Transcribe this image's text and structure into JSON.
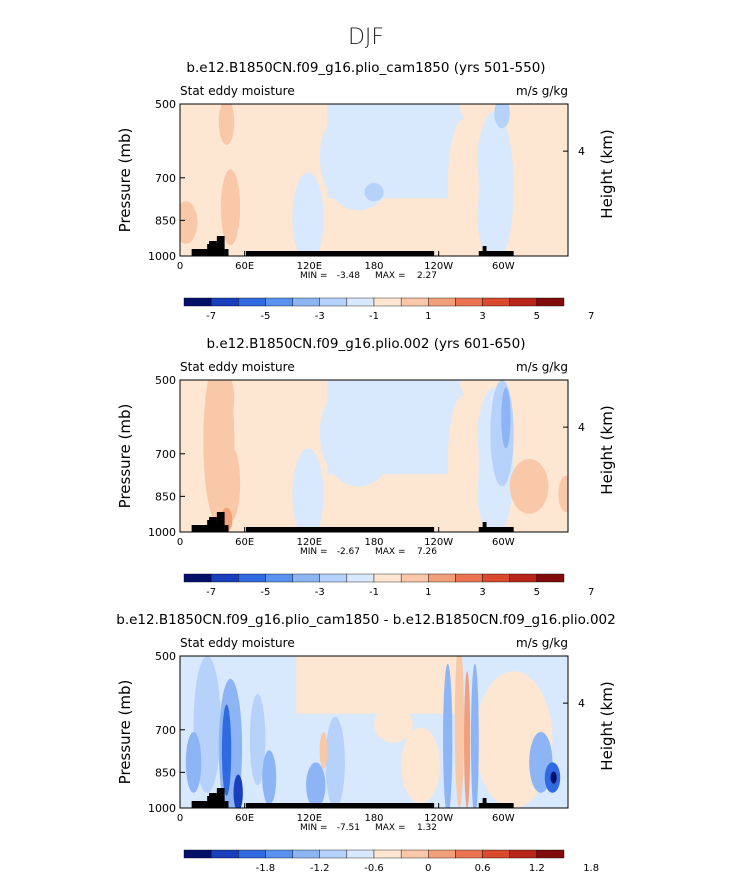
{
  "figure": {
    "title": "DJF"
  },
  "colors": {
    "palette_blue": [
      "#05106b",
      "#1a3fbd",
      "#2f6ae0",
      "#5a90f0",
      "#8db4f5",
      "#b7d2fa",
      "#d8e8fd"
    ],
    "palette_red": [
      "#fde7d3",
      "#f8c8a8",
      "#f2a07a",
      "#eb7450",
      "#dc4a2e",
      "#b8261c",
      "#800c0c"
    ],
    "land": "#000000"
  },
  "chart_data": [
    {
      "type": "heatmap",
      "title": "b.e12.B1850CN.f09_g16.plio_cam1850 (yrs 501-550)",
      "left_label": "Stat eddy moisture",
      "right_label": "m/s g/kg",
      "xlabel": "",
      "ylabel": "Pressure (mb)",
      "y2label": "Height (km)",
      "x_ticks": [
        "0",
        "60E",
        "120E",
        "180",
        "120W",
        "60W"
      ],
      "y_ticks": [
        "500",
        "700",
        "850",
        "1000"
      ],
      "y2_ticks": [
        "4"
      ],
      "stats": {
        "min_label": "MIN =",
        "min": "-3.48",
        "max_label": "MAX =",
        "max": "2.27"
      },
      "colorbar_labels": [
        "-7",
        "-5",
        "-3",
        "-1",
        "1",
        "3",
        "5",
        "7"
      ]
    },
    {
      "type": "heatmap",
      "title": "b.e12.B1850CN.f09_g16.plio.002 (yrs 601-650)",
      "left_label": "Stat eddy moisture",
      "right_label": "m/s g/kg",
      "xlabel": "",
      "ylabel": "Pressure (mb)",
      "y2label": "Height (km)",
      "x_ticks": [
        "0",
        "60E",
        "120E",
        "180",
        "120W",
        "60W"
      ],
      "y_ticks": [
        "500",
        "700",
        "850",
        "1000"
      ],
      "y2_ticks": [
        "4"
      ],
      "stats": {
        "min_label": "MIN =",
        "min": "-2.67",
        "max_label": "MAX =",
        "max": "7.26"
      },
      "colorbar_labels": [
        "-7",
        "-5",
        "-3",
        "-1",
        "1",
        "3",
        "5",
        "7"
      ]
    },
    {
      "type": "heatmap",
      "title": "b.e12.B1850CN.f09_g16.plio_cam1850 - b.e12.B1850CN.f09_g16.plio.002",
      "left_label": "Stat eddy moisture",
      "right_label": "m/s g/kg",
      "xlabel": "",
      "ylabel": "Pressure (mb)",
      "y2label": "Height (km)",
      "x_ticks": [
        "0",
        "60E",
        "120E",
        "180",
        "120W",
        "60W"
      ],
      "y_ticks": [
        "500",
        "700",
        "850",
        "1000"
      ],
      "y2_ticks": [
        "4"
      ],
      "stats": {
        "min_label": "MIN =",
        "min": "-7.51",
        "max_label": "MAX =",
        "max": "1.32"
      },
      "colorbar_labels": [
        "-1.8",
        "-1.2",
        "-0.6",
        "0",
        "0.6",
        "1.2",
        "1.8"
      ]
    }
  ]
}
